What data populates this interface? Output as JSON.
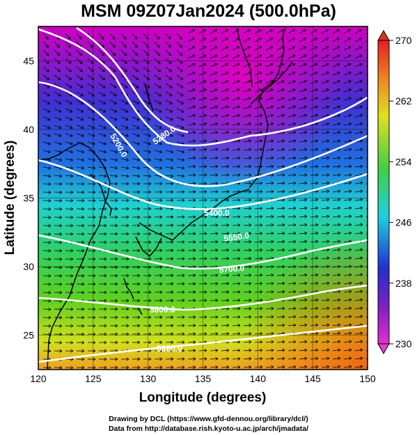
{
  "title": "MSM 09Z07Jan2024 (500.0hPa)",
  "footer": {
    "line1": "Drawing by DCL (https://www.gfd-dennou.org/library/dcl/)",
    "line2": "Data from http://database.rish.kyoto-u.ac.jp/arch/jmadata/"
  },
  "map": {
    "xlabel": "Longitude (degrees)",
    "ylabel": "Latitude  (degrees)",
    "xlim": [
      120,
      150
    ],
    "ylim": [
      22.5,
      47.5
    ],
    "xticks": [
      "120",
      "125",
      "130",
      "135",
      "140",
      "145",
      "150"
    ],
    "yticks": [
      "25",
      "30",
      "35",
      "40",
      "45"
    ],
    "contour_labels": [
      "5200.0",
      "5280.0",
      "5400.0",
      "5550.0",
      "5700.0",
      "5800.0",
      "5880.0"
    ],
    "colors": {
      "cold": "#c000c0",
      "blue": "#2030d0",
      "cyan": "#20d0e0",
      "green": "#40d040",
      "yellow": "#e8e020",
      "orange": "#f08020"
    }
  },
  "colorbar": {
    "labels": [
      "270",
      "262",
      "254",
      "246",
      "238",
      "230"
    ],
    "min": 230,
    "max": 270
  }
}
